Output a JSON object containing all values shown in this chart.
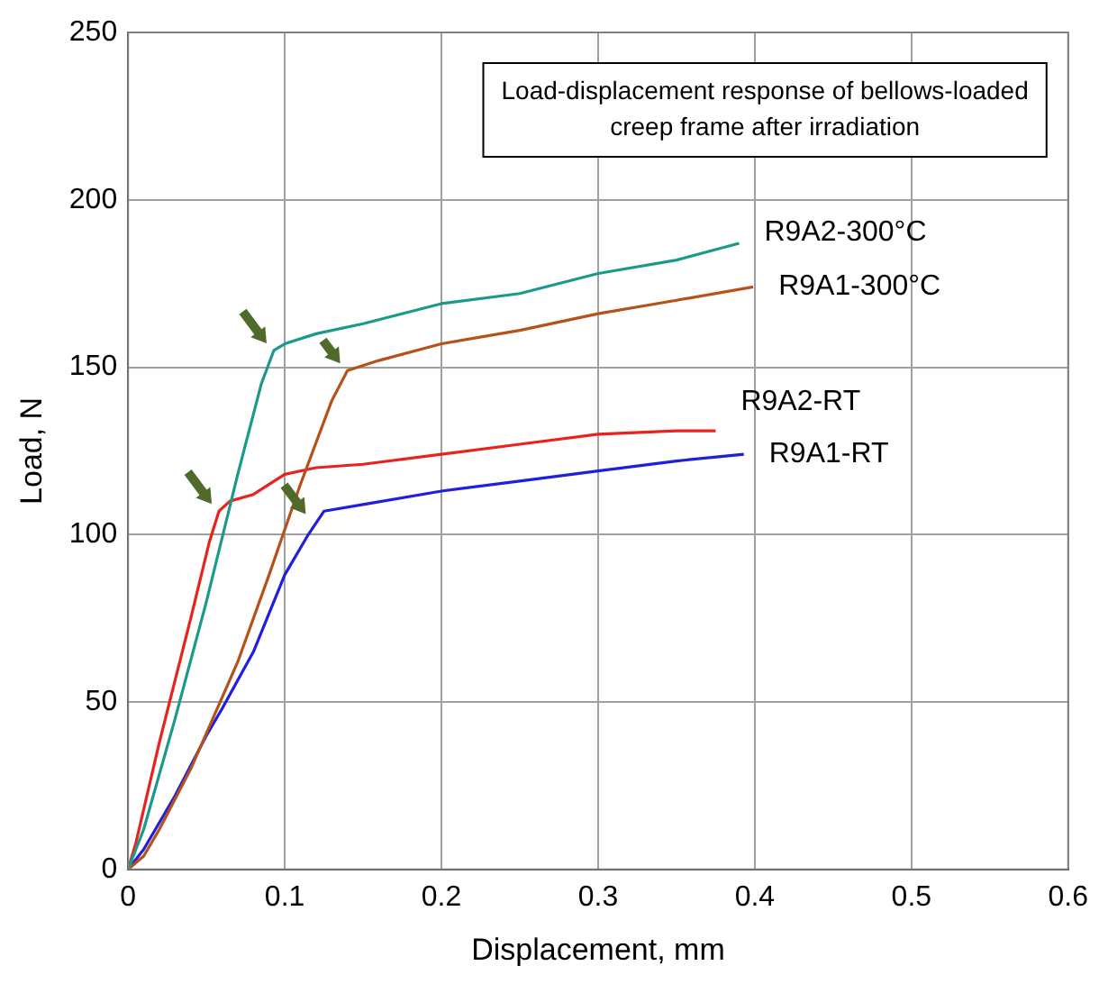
{
  "chart_data": {
    "type": "line",
    "xlabel": "Displacement, mm",
    "ylabel": "Load, N",
    "annotations": [
      "Load-displacement response of bellows-loaded creep frame after irradiation"
    ],
    "xlim": [
      0,
      0.6
    ],
    "xticks": [
      0,
      0.1,
      0.2,
      0.3,
      0.4,
      0.5,
      0.6
    ],
    "ylim": [
      0,
      250
    ],
    "yticks": [
      0,
      50,
      100,
      150,
      200,
      250
    ],
    "grid": true,
    "legend": false,
    "marker": "none",
    "line_style": "solid",
    "series": [
      {
        "name": "R9A2-300°C",
        "color": "#1a9a8a",
        "x": [
          0,
          0.01,
          0.03,
          0.05,
          0.07,
          0.085,
          0.093,
          0.1,
          0.12,
          0.15,
          0.2,
          0.25,
          0.3,
          0.35,
          0.39
        ],
        "values": [
          0,
          12,
          45,
          80,
          118,
          145,
          155,
          157,
          160,
          163,
          169,
          172,
          178,
          182,
          187
        ]
      },
      {
        "name": "R9A1-300°C",
        "color": "#b5521b",
        "x": [
          0,
          0.01,
          0.02,
          0.04,
          0.055,
          0.07,
          0.09,
          0.11,
          0.13,
          0.14,
          0.16,
          0.2,
          0.25,
          0.3,
          0.35,
          0.399
        ],
        "values": [
          0,
          4,
          12,
          30,
          46,
          62,
          88,
          115,
          140,
          149,
          152,
          157,
          161,
          166,
          170,
          174
        ]
      },
      {
        "name": "R9A2-RT",
        "color": "#e8231e",
        "x": [
          0,
          0.005,
          0.02,
          0.04,
          0.052,
          0.058,
          0.065,
          0.08,
          0.1,
          0.12,
          0.15,
          0.2,
          0.25,
          0.3,
          0.35,
          0.375
        ],
        "values": [
          0,
          8,
          38,
          75,
          98,
          107,
          110,
          112,
          118,
          120,
          121,
          124,
          127,
          130,
          131,
          131
        ]
      },
      {
        "name": "R9A1-RT",
        "color": "#1f1fdc",
        "x": [
          0,
          0.01,
          0.03,
          0.05,
          0.06,
          0.08,
          0.1,
          0.115,
          0.125,
          0.15,
          0.2,
          0.25,
          0.3,
          0.35,
          0.393
        ],
        "values": [
          0,
          6,
          22,
          40,
          48,
          65,
          88,
          100,
          107,
          109,
          113,
          116,
          119,
          122,
          124
        ]
      }
    ]
  }
}
